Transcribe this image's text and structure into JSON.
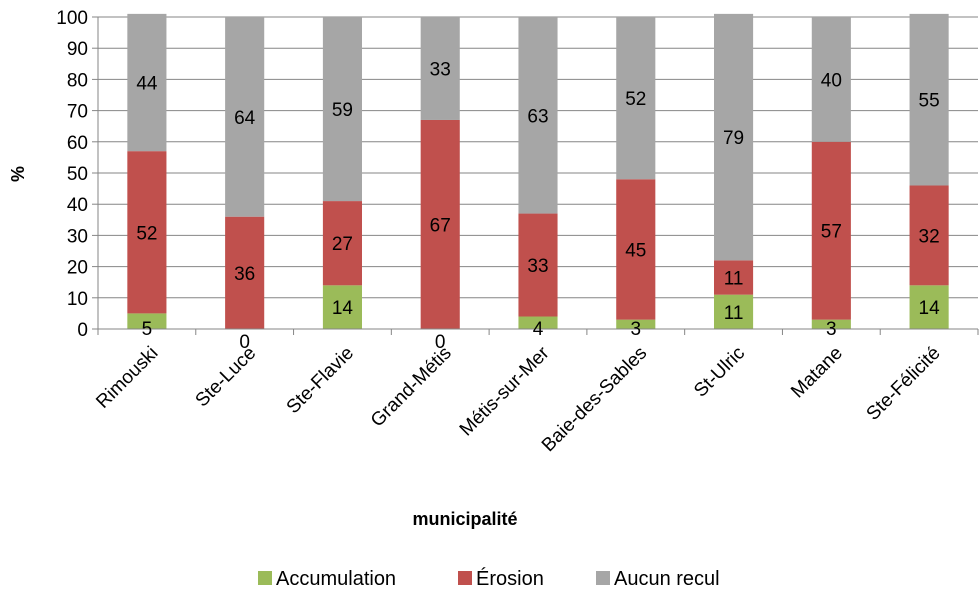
{
  "chart_data": {
    "type": "bar",
    "stacked": true,
    "categories": [
      "Rimouski",
      "Ste-Luce",
      "Ste-Flavie",
      "Grand-Métis",
      "Métis-sur-Mer",
      "Baie-des-Sables",
      "St-Ulric",
      "Matane",
      "Ste-Félicité"
    ],
    "series": [
      {
        "name": "Accumulation",
        "color": "#9bbb59",
        "values": [
          5,
          0,
          14,
          0,
          4,
          3,
          11,
          3,
          14
        ]
      },
      {
        "name": "Érosion",
        "color": "#c0504d",
        "values": [
          52,
          36,
          27,
          67,
          33,
          45,
          11,
          57,
          32
        ]
      },
      {
        "name": "Aucun recul",
        "color": "#a6a6a6",
        "values": [
          44,
          64,
          59,
          33,
          63,
          52,
          79,
          40,
          55
        ]
      }
    ],
    "xlabel": "municipalité",
    "ylabel": "%",
    "ylim": [
      0,
      100
    ],
    "yticks": [
      "0",
      "10",
      "20",
      "30",
      "40",
      "50",
      "60",
      "70",
      "80",
      "90",
      "100"
    ],
    "grid": true,
    "legend": "bottom"
  }
}
